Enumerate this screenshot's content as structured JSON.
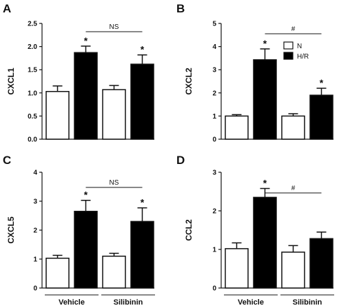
{
  "chart_data": [
    {
      "type": "bar",
      "panel": "A",
      "ylabel": "CXCL1",
      "ylim": [
        0,
        2.5
      ],
      "yticks": [
        "0.0",
        "0.5",
        "1.0",
        "1.5",
        "2.0",
        "2.5"
      ],
      "groups": [
        "Vehicle",
        "Silibinin"
      ],
      "series": [
        {
          "name": "N",
          "values": [
            1.03,
            1.07
          ],
          "errors": [
            0.12,
            0.09
          ]
        },
        {
          "name": "H/R",
          "values": [
            1.87,
            1.62
          ],
          "errors": [
            0.14,
            0.2
          ]
        }
      ],
      "star_text": "*",
      "stars": [
        [
          false,
          false
        ],
        [
          true,
          true
        ]
      ],
      "comparison_label": "NS"
    },
    {
      "type": "bar",
      "panel": "B",
      "ylabel": "CXCL2",
      "ylim": [
        0,
        5
      ],
      "yticks": [
        "0",
        "1",
        "2",
        "3",
        "4",
        "5"
      ],
      "groups": [
        "Vehicle",
        "Silibinin"
      ],
      "series": [
        {
          "name": "N",
          "values": [
            1.0,
            1.0
          ],
          "errors": [
            0.06,
            0.1
          ]
        },
        {
          "name": "H/R",
          "values": [
            3.43,
            1.9
          ],
          "errors": [
            0.47,
            0.3
          ]
        }
      ],
      "star_text": "*",
      "stars": [
        [
          false,
          false
        ],
        [
          true,
          true
        ]
      ],
      "comparison_label": "#",
      "legend": {
        "placement": "top-right",
        "entries": [
          "N",
          "H/R"
        ]
      }
    },
    {
      "type": "bar",
      "panel": "C",
      "ylabel": "CXCL5",
      "ylim": [
        0,
        4
      ],
      "yticks": [
        "0",
        "1",
        "2",
        "3",
        "4"
      ],
      "groups": [
        "Vehicle",
        "Silibinin"
      ],
      "series": [
        {
          "name": "N",
          "values": [
            1.03,
            1.1
          ],
          "errors": [
            0.1,
            0.1
          ]
        },
        {
          "name": "H/R",
          "values": [
            2.65,
            2.3
          ],
          "errors": [
            0.38,
            0.47
          ]
        }
      ],
      "star_text": "*",
      "stars": [
        [
          false,
          false
        ],
        [
          true,
          true
        ]
      ],
      "comparison_label": "NS"
    },
    {
      "type": "bar",
      "panel": "D",
      "ylabel": "CCL2",
      "ylim": [
        0,
        3
      ],
      "yticks": [
        "0",
        "1",
        "2",
        "3"
      ],
      "groups": [
        "Vehicle",
        "Silibinin"
      ],
      "series": [
        {
          "name": "N",
          "values": [
            1.02,
            0.93
          ],
          "errors": [
            0.15,
            0.17
          ]
        },
        {
          "name": "H/R",
          "values": [
            2.35,
            1.28
          ],
          "errors": [
            0.23,
            0.17
          ]
        }
      ],
      "star_text": "*",
      "stars": [
        [
          false,
          false
        ],
        [
          true,
          false
        ]
      ],
      "comparison_label": "#"
    }
  ],
  "colors": {
    "N": "#ffffff",
    "H/R": "#000000",
    "ink": "#111111"
  }
}
